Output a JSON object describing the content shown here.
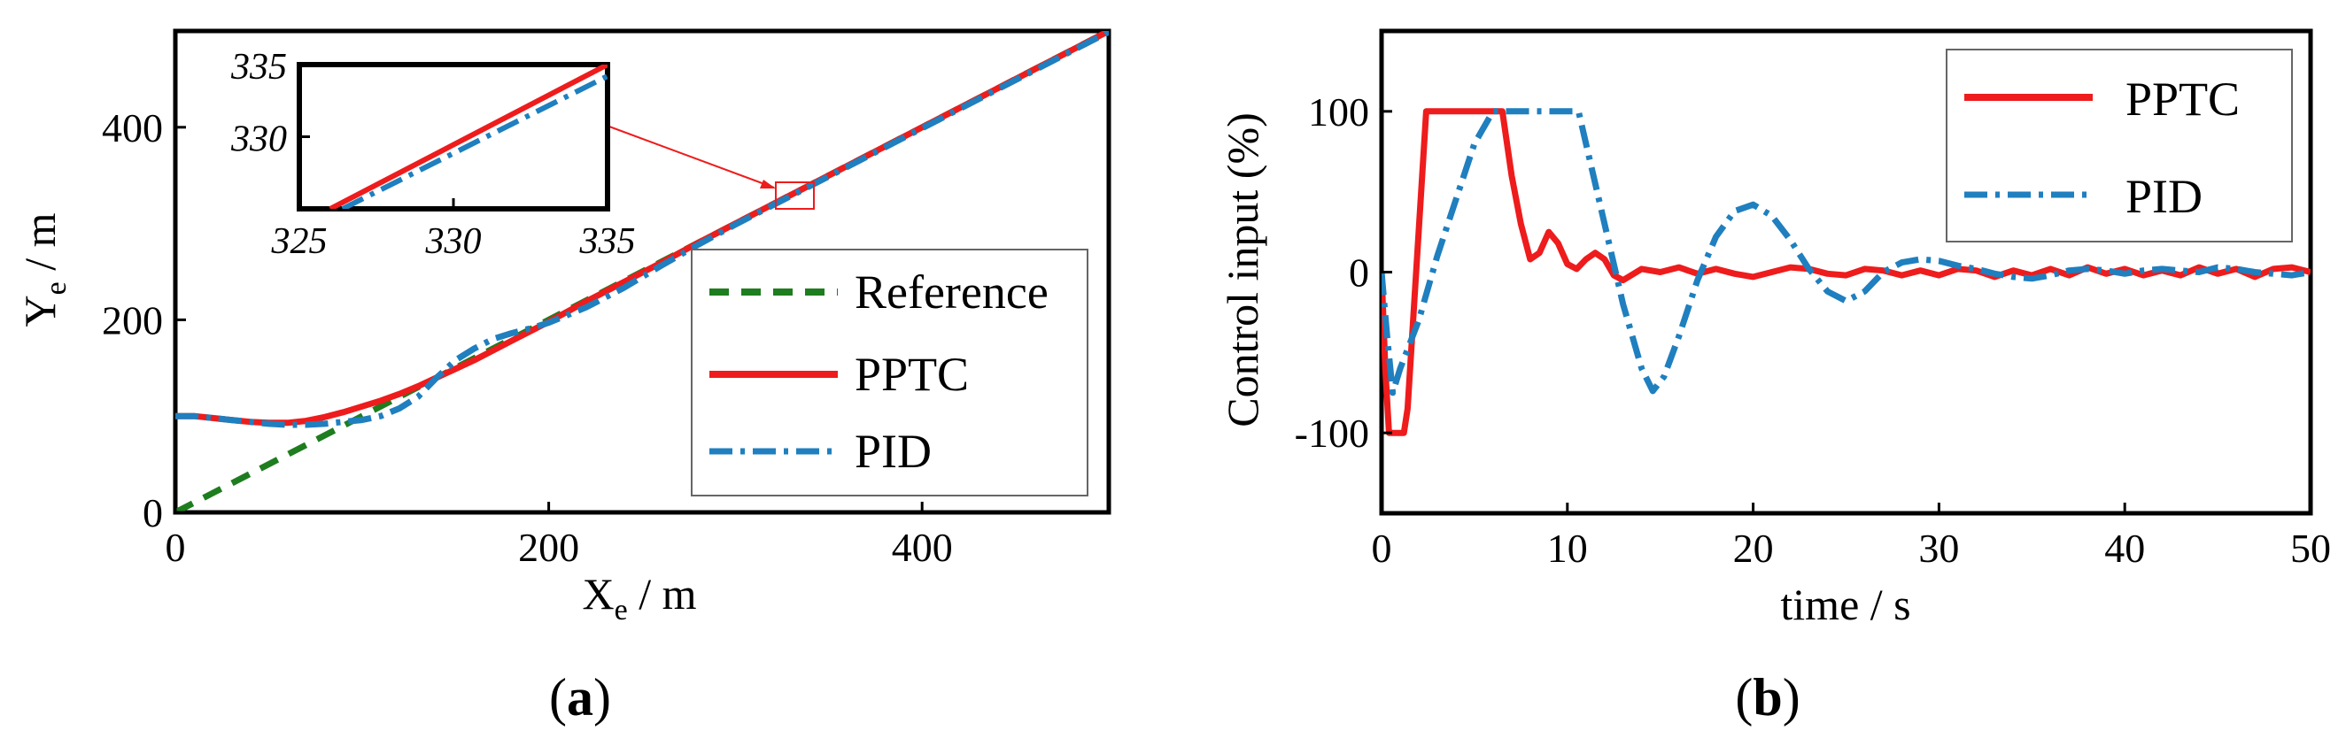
{
  "chart_data": [
    {
      "id": "a",
      "type": "line",
      "panel_label": "a",
      "xlabel": "X",
      "xlabel_sub": "e",
      "xlabel_unit": " / m",
      "ylabel": "Y",
      "ylabel_sub": "e",
      "ylabel_unit": " / m",
      "xlim": [
        0,
        500
      ],
      "ylim": [
        0,
        500
      ],
      "xticks": [
        0,
        200,
        400
      ],
      "yticks": [
        0,
        200,
        400
      ],
      "legend_position": "bottom-right",
      "series": [
        {
          "name": "Reference",
          "color": "#1e7d1e",
          "style": "dashed",
          "x": [
            0,
            20,
            40,
            60,
            80,
            100,
            120,
            140,
            160,
            180,
            200,
            220,
            240,
            260,
            280,
            300,
            320,
            340,
            360,
            380,
            400,
            420,
            440,
            460,
            480,
            500
          ],
          "y": [
            0,
            20,
            40,
            60,
            80,
            100,
            120,
            140,
            160,
            180,
            200,
            220,
            240,
            260,
            280,
            300,
            320,
            340,
            360,
            380,
            400,
            420,
            440,
            460,
            480,
            500
          ]
        },
        {
          "name": "PPTC",
          "color": "#ee1c1c",
          "style": "solid",
          "x": [
            0,
            10,
            20,
            30,
            40,
            50,
            60,
            70,
            80,
            90,
            100,
            110,
            120,
            130,
            140,
            150,
            160,
            180,
            200,
            220,
            240,
            260,
            280,
            300,
            320,
            340,
            360,
            380,
            400,
            420,
            440,
            460,
            480,
            500
          ],
          "y": [
            100,
            100,
            98,
            96,
            94,
            93,
            93,
            95,
            99,
            104,
            110,
            116,
            123,
            131,
            140,
            149,
            158,
            178,
            198,
            219,
            239,
            259,
            280,
            300,
            320,
            340,
            360,
            380,
            400,
            420,
            440,
            460,
            480,
            500
          ]
        },
        {
          "name": "PID",
          "color": "#1f7fbf",
          "style": "dashdot",
          "x": [
            0,
            10,
            20,
            30,
            40,
            50,
            60,
            70,
            80,
            90,
            100,
            110,
            120,
            130,
            140,
            150,
            160,
            170,
            180,
            190,
            200,
            210,
            220,
            240,
            260,
            280,
            300,
            320,
            340,
            360,
            380,
            400,
            420,
            440,
            460,
            480,
            500
          ],
          "y": [
            100,
            100,
            98,
            96,
            94,
            92,
            91,
            91,
            92,
            94,
            96,
            100,
            108,
            120,
            140,
            158,
            170,
            180,
            186,
            191,
            197,
            205,
            213,
            233,
            256,
            278,
            299,
            319,
            339,
            359,
            379,
            399,
            419,
            439,
            459,
            479,
            499
          ]
        }
      ],
      "inset": {
        "xlim": [
          325,
          335
        ],
        "ylim": [
          325,
          335
        ],
        "xticks": [
          325,
          330,
          335
        ],
        "yticks": [
          330,
          335
        ],
        "series": [
          {
            "name": "PPTC",
            "x": [
              326,
              335
            ],
            "y": [
              325,
              335
            ]
          },
          {
            "name": "PID",
            "x": [
              326.4,
              335
            ],
            "y": [
              325,
              334.2
            ]
          }
        ]
      }
    },
    {
      "id": "b",
      "type": "line",
      "panel_label": "b",
      "xlabel": "time / s",
      "ylabel": "Control input (%)",
      "xlim": [
        0,
        50
      ],
      "ylim": [
        -150,
        150
      ],
      "xticks": [
        0,
        10,
        20,
        30,
        40,
        50
      ],
      "yticks": [
        -100,
        0,
        100
      ],
      "legend_position": "top-right",
      "series": [
        {
          "name": "PPTC",
          "color": "#ee1c1c",
          "style": "solid",
          "x": [
            0,
            0.2,
            0.4,
            0.6,
            1.2,
            1.4,
            2.4,
            2.6,
            6.5,
            7.0,
            7.5,
            8.0,
            8.5,
            9.0,
            9.5,
            10.0,
            10.5,
            11.0,
            11.5,
            12.0,
            12.5,
            13.0,
            14.0,
            15.0,
            16.0,
            17.0,
            18.0,
            19.0,
            20.0,
            21.0,
            22.0,
            23.0,
            24.0,
            25.0,
            26.0,
            27.0,
            28.0,
            29.0,
            30.0,
            31.0,
            32.0,
            33.0,
            34.0,
            35.0,
            36.0,
            37.0,
            38.0,
            39.0,
            40.0,
            41.0,
            42.0,
            43.0,
            44.0,
            45.0,
            46.0,
            47.0,
            48.0,
            49.0,
            50.0
          ],
          "y": [
            0,
            -60,
            -100,
            -100,
            -100,
            -85,
            100,
            100,
            100,
            60,
            30,
            8,
            12,
            25,
            18,
            5,
            2,
            8,
            12,
            8,
            -2,
            -5,
            2,
            0,
            3,
            -1,
            2,
            -1,
            -3,
            0,
            3,
            2,
            -1,
            -2,
            2,
            1,
            -2,
            1,
            -2,
            2,
            1,
            -3,
            1,
            -2,
            2,
            -2,
            3,
            -1,
            2,
            -2,
            1,
            -2,
            3,
            -1,
            2,
            -3,
            2,
            3,
            0
          ]
        },
        {
          "name": "PID",
          "color": "#1f7fbf",
          "style": "dashdot",
          "x": [
            0,
            0.3,
            0.6,
            1.0,
            1.5,
            2.0,
            3.0,
            4.0,
            5.0,
            6.0,
            7.0,
            8.0,
            9.0,
            10.0,
            10.6,
            11.2,
            12.0,
            13.0,
            14.0,
            14.6,
            15.2,
            16.0,
            17.0,
            18.0,
            19.0,
            20.0,
            21.0,
            22.0,
            23.0,
            24.0,
            25.0,
            26.0,
            27.0,
            28.0,
            29.0,
            30.0,
            31.0,
            32.0,
            33.0,
            34.0,
            35.0,
            36.0,
            37.0,
            38.0,
            39.0,
            40.0,
            41.0,
            42.0,
            43.0,
            44.0,
            45.0,
            46.0,
            47.0,
            48.0,
            49.0,
            50.0
          ],
          "y": [
            0,
            -40,
            -75,
            -60,
            -45,
            -30,
            10,
            45,
            80,
            100,
            100,
            100,
            100,
            100,
            100,
            70,
            30,
            -20,
            -60,
            -74,
            -65,
            -40,
            -5,
            22,
            38,
            42,
            35,
            20,
            2,
            -12,
            -18,
            -12,
            0,
            6,
            8,
            7,
            4,
            2,
            -1,
            -3,
            -4,
            -2,
            1,
            2,
            1,
            -1,
            1,
            2,
            1,
            0,
            3,
            2,
            0,
            -1,
            -2,
            0
          ]
        }
      ]
    }
  ]
}
